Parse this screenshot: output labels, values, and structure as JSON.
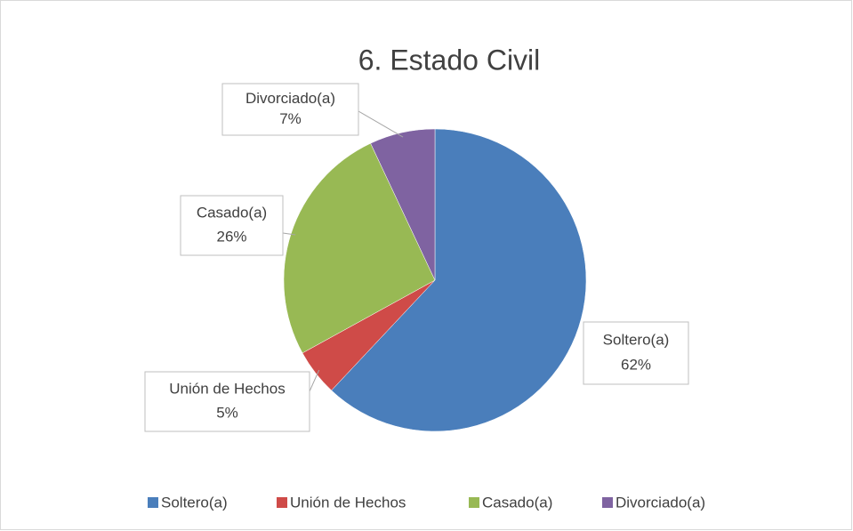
{
  "chart_data": {
    "type": "pie",
    "title": "6. Estado Civil",
    "categories": [
      "Soltero(a)",
      "Unión de Hechos",
      "Casado(a)",
      "Divorciado(a)"
    ],
    "values": [
      62,
      5,
      26,
      7
    ],
    "value_labels": [
      "62%",
      "5%",
      "26%",
      "7%"
    ],
    "colors": [
      "#4a7ebb",
      "#cf4b48",
      "#98b954",
      "#7f63a1"
    ],
    "legend": "bottom"
  }
}
